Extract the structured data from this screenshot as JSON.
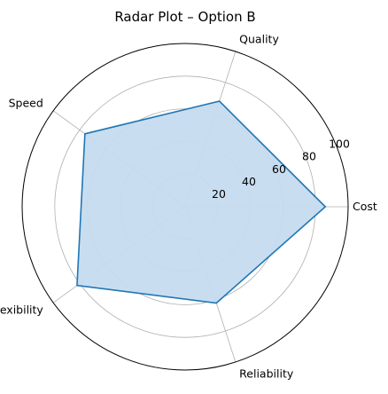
{
  "chart_data": {
    "type": "radar",
    "title": "Radar Plot – Option B",
    "categories": [
      "Cost",
      "Quality",
      "Speed",
      "Flexibility",
      "Reliability"
    ],
    "series": [
      {
        "values": [
          86,
          68,
          76,
          82,
          62
        ]
      }
    ],
    "rlim": [
      0,
      100
    ],
    "rticks": [
      20,
      40,
      60,
      80,
      100
    ],
    "rtick_labels": [
      "20",
      "40",
      "60",
      "80",
      "100"
    ],
    "grid": true,
    "colors": {
      "line": "#1f77b4",
      "fill": "#c6dbef",
      "grid": "#b0b0b0",
      "frame": "#000000"
    }
  }
}
